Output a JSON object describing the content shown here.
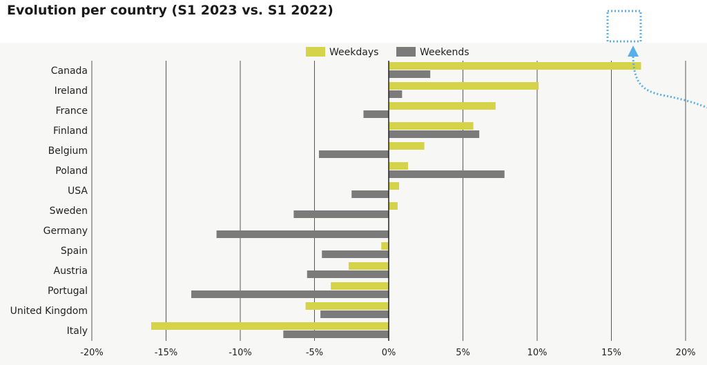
{
  "title": "Evolution per country (S1 2023 vs. S1 2022)",
  "colors": {
    "weekdays": "#d4d34a",
    "weekends": "#7b7b7b",
    "gridline": "#555555",
    "annotation": "#5aaee8"
  },
  "annotation": {
    "shape": "dotted-square-with-arrow",
    "color": "#5aaee8"
  },
  "chart_data": {
    "type": "bar",
    "orientation": "horizontal",
    "title": "Evolution per country (S1 2023 vs. S1 2022)",
    "xlabel": "",
    "ylabel": "",
    "xlim": [
      -20,
      20
    ],
    "x_ticks": [
      -20,
      -15,
      -10,
      -5,
      0,
      5,
      10,
      15,
      20
    ],
    "x_tick_labels": [
      "-20%",
      "-15%",
      "-10%",
      "-5%",
      "0%",
      "5%",
      "10%",
      "15%",
      "20%"
    ],
    "unit": "%",
    "grid": "vertical",
    "legend_position": "top-center",
    "categories": [
      "Canada",
      "Ireland",
      "France",
      "Finland",
      "Belgium",
      "Poland",
      "USA",
      "Sweden",
      "Germany",
      "Spain",
      "Austria",
      "Portugal",
      "United Kingdom",
      "Italy"
    ],
    "series": [
      {
        "name": "Weekdays",
        "color": "#d4d34a",
        "values": [
          17.0,
          10.1,
          7.2,
          5.7,
          2.4,
          1.3,
          0.7,
          0.6,
          0.0,
          -0.5,
          -2.7,
          -3.9,
          -5.6,
          -16.0
        ]
      },
      {
        "name": "Weekends",
        "color": "#7b7b7b",
        "values": [
          2.8,
          0.9,
          -1.7,
          6.1,
          -4.7,
          7.8,
          -2.5,
          -6.4,
          -11.6,
          -4.5,
          -5.5,
          -13.3,
          -4.6,
          -7.1
        ]
      }
    ]
  }
}
